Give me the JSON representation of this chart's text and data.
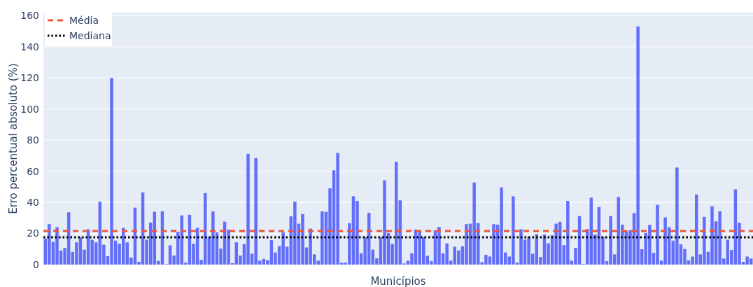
{
  "chart_data": {
    "type": "bar",
    "xlabel": "Municípios",
    "ylabel": "Erro percentual absoluto (%)",
    "categories": [
      null,
      null,
      null,
      null,
      null,
      null,
      null,
      null,
      null,
      null,
      null,
      null,
      null,
      null,
      null,
      null,
      null,
      null,
      null,
      null,
      null,
      null,
      null,
      null,
      null,
      null,
      null,
      null,
      null,
      null,
      null,
      null,
      null,
      null,
      null,
      null,
      null,
      null,
      null,
      null,
      null,
      null,
      null,
      null,
      null,
      null,
      null,
      null,
      null,
      null,
      null,
      null,
      null,
      null,
      null,
      null,
      null,
      null,
      null,
      null,
      null,
      null,
      null,
      null,
      null,
      null,
      null,
      null,
      null,
      null,
      null,
      null,
      null,
      null,
      null,
      null,
      null,
      null,
      null,
      null,
      null,
      null,
      null,
      null,
      null,
      null,
      null,
      null,
      null,
      null,
      null,
      null,
      null,
      null,
      null,
      null,
      null,
      null,
      null,
      null,
      null,
      null,
      null,
      null,
      null,
      null,
      null,
      null,
      null,
      null,
      null,
      null,
      null,
      null,
      null,
      null,
      null,
      null,
      null,
      null,
      null,
      null,
      null,
      null,
      null,
      null,
      null,
      null,
      null,
      null,
      null,
      null,
      null,
      null,
      null,
      null,
      null,
      null,
      null,
      null,
      null,
      null,
      null,
      null,
      null,
      null,
      null,
      null,
      null,
      null,
      null,
      null,
      null,
      null,
      null,
      null,
      null,
      null,
      null,
      null,
      null,
      null,
      null,
      null,
      null,
      null,
      null,
      null,
      null,
      null,
      null,
      null,
      null,
      null,
      null,
      null,
      null,
      null,
      null,
      null,
      null,
      null
    ],
    "series": [
      {
        "color": "#636efa",
        "values": [
          16.7,
          26,
          14.6,
          24,
          9,
          10.7,
          33.6,
          8.2,
          14.3,
          17.6,
          9.6,
          22.7,
          16,
          14.3,
          40.4,
          12.8,
          5.4,
          120,
          15.4,
          13.4,
          23.6,
          14.3,
          4.5,
          36.6,
          1.8,
          46.4,
          16,
          27,
          34,
          2.4,
          34.3,
          0.3,
          12.4,
          5.8,
          21,
          31.6,
          1.2,
          32,
          13.4,
          23.6,
          3,
          46,
          17.6,
          34.2,
          20.7,
          10.3,
          27.6,
          22.4,
          0.9,
          14.3,
          5.8,
          13.3,
          71.2,
          7,
          68.5,
          2.5,
          3.7,
          2.8,
          15.7,
          7.8,
          11.9,
          20.7,
          11.5,
          31,
          40.4,
          26.3,
          32.5,
          11,
          23.1,
          6.6,
          2.5,
          34.2,
          33.9,
          49,
          60.6,
          71.8,
          1.2,
          1.2,
          26.6,
          43.9,
          40.9,
          7.3,
          17.6,
          33.3,
          9.6,
          4,
          17.6,
          54.2,
          20.3,
          13.3,
          66.1,
          41.3,
          0.7,
          2.5,
          7.3,
          22.5,
          21.3,
          17.5,
          5.7,
          2.2,
          21.9,
          24.2,
          7.2,
          13.6,
          2.5,
          11.5,
          9.1,
          11.8,
          26,
          26.3,
          52.8,
          26.7,
          1.6,
          6.3,
          5.2,
          26,
          25.7,
          49.6,
          7.8,
          5.2,
          43.9,
          1.3,
          22.7,
          16.1,
          17.8,
          7,
          19.7,
          4.9,
          19.4,
          13.7,
          18.8,
          26.3,
          27.5,
          12.5,
          40.9,
          2.5,
          10.7,
          31.2,
          0.4,
          22.8,
          43,
          19.3,
          37,
          17.8,
          2.2,
          31.2,
          6.6,
          43.4,
          25.7,
          21.5,
          22.1,
          33.1,
          153.1,
          9.9,
          20.3,
          25.5,
          7.5,
          38.4,
          2.5,
          30.4,
          24,
          15.4,
          62.4,
          13,
          10,
          2.7,
          5.2,
          45.1,
          6.6,
          30.7,
          8.2,
          37.5,
          27.8,
          34.3,
          3.9,
          16,
          9.4,
          48.4,
          26.9,
          1.8,
          5.2,
          3.9
        ]
      }
    ],
    "ylim": [
      0,
      162
    ],
    "yticks": [
      0,
      20,
      40,
      60,
      80,
      100,
      120,
      140,
      160
    ],
    "grid": "y",
    "legend": "top left",
    "ref_lines": [
      {
        "axis": "y",
        "value": 21.6,
        "label": "Média",
        "color": "#ef553b",
        "line_style": "dashed"
      },
      {
        "axis": "y",
        "value": 17.6,
        "label": "Mediana",
        "color": "#000000",
        "line_style": "dotted"
      }
    ]
  }
}
